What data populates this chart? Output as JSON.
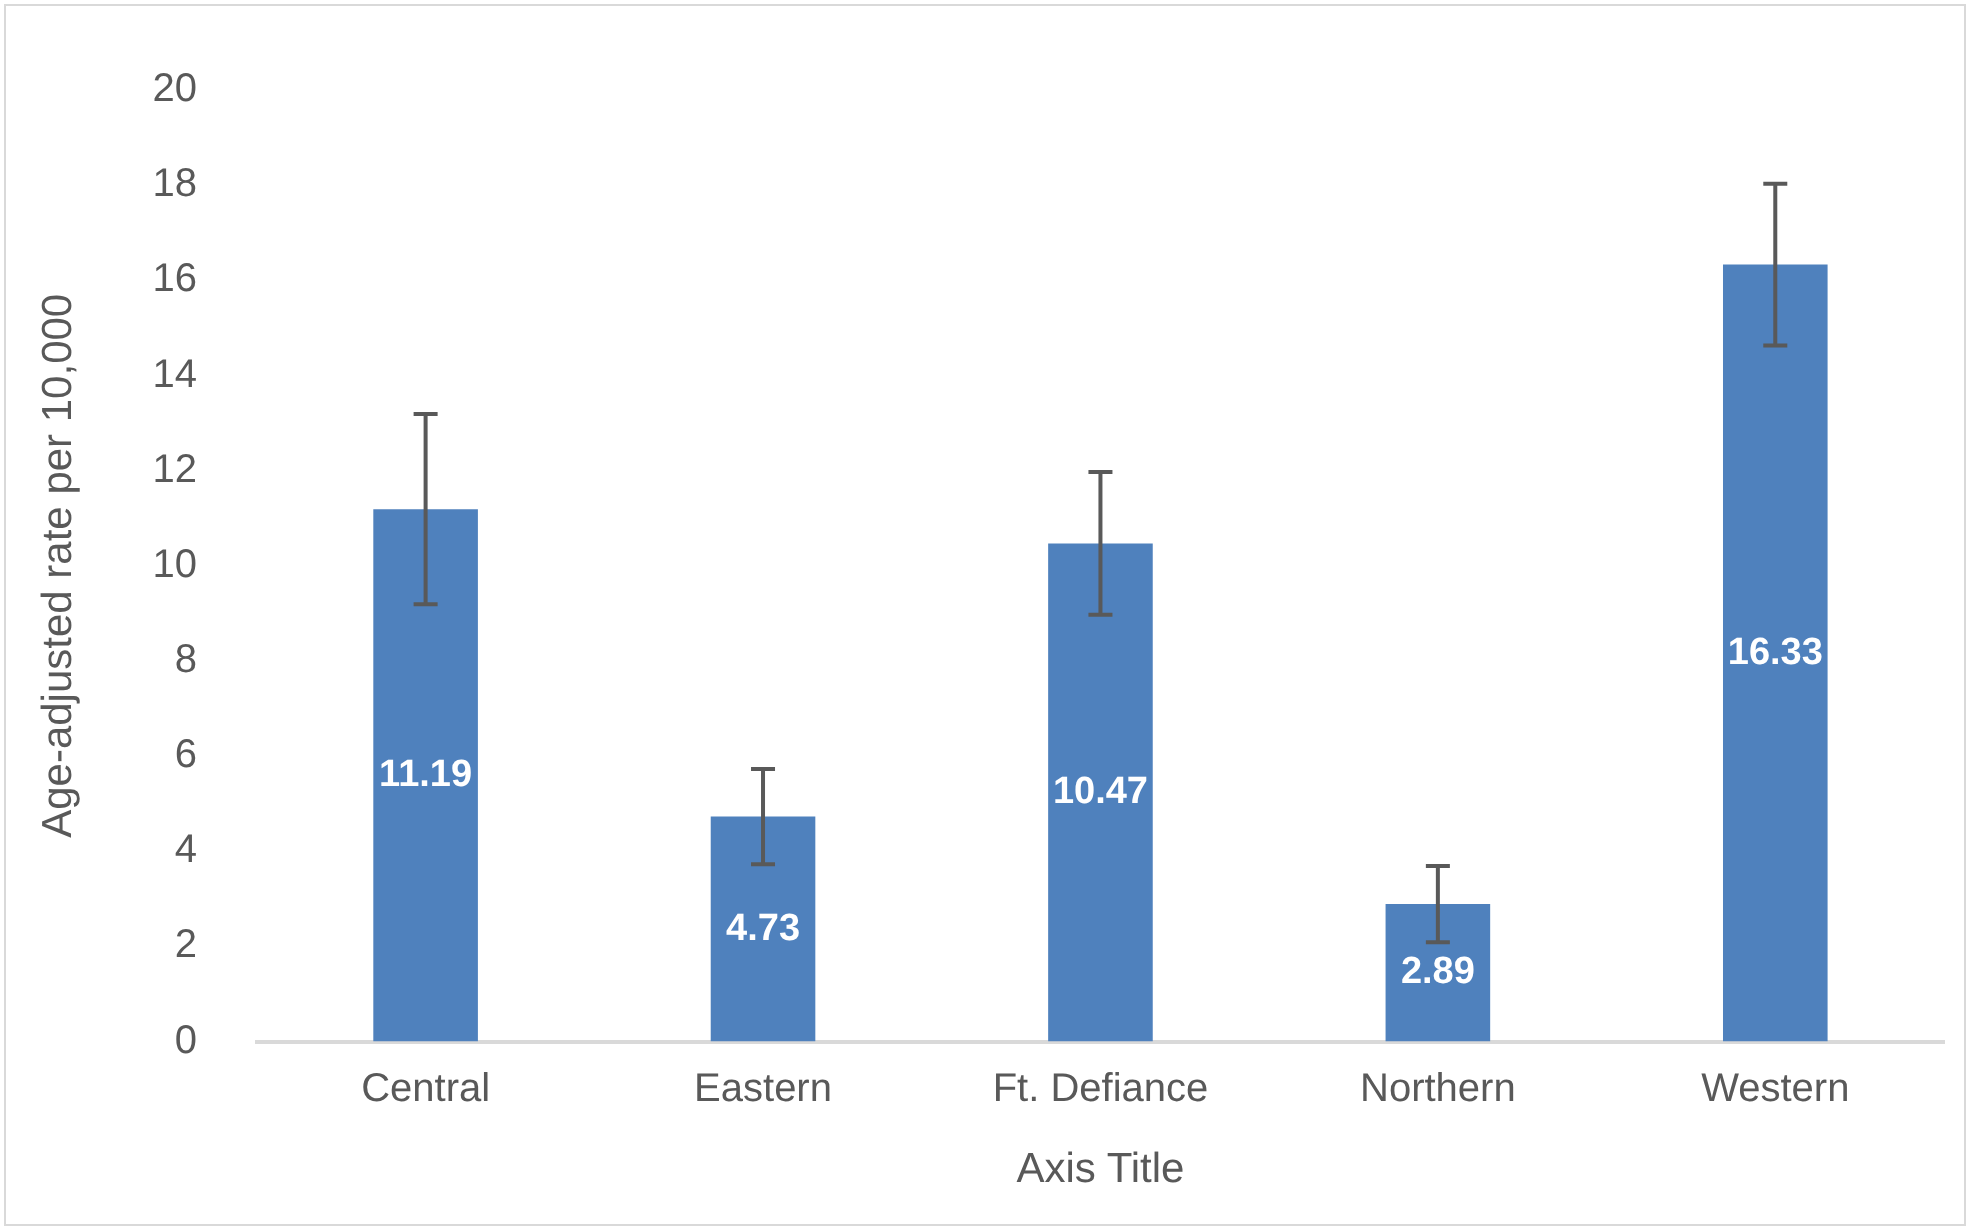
{
  "chart_data": {
    "type": "bar",
    "xlabel": "Axis Title",
    "ylabel": "Age-adjusted rate per 10,000",
    "categories": [
      "Central",
      "Eastern",
      "Ft. Defiance",
      "Northern",
      "Western"
    ],
    "values": [
      11.19,
      4.73,
      10.47,
      2.89,
      16.33
    ],
    "errors": [
      2.0,
      1.0,
      1.5,
      0.8,
      1.7
    ],
    "color": "#4f81bd",
    "ylim": [
      0,
      20
    ],
    "yticks": [
      0,
      2,
      4,
      6,
      8,
      10,
      12,
      14,
      16,
      18,
      20
    ],
    "grid": false,
    "legend": false,
    "data_labels": true
  }
}
